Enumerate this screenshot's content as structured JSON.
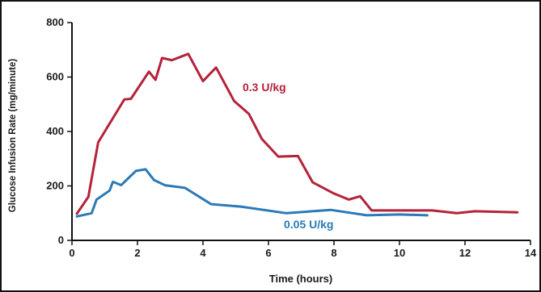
{
  "chart_data": {
    "type": "line",
    "title": "",
    "xlabel": "Time (hours)",
    "ylabel": "Glucose Infusion Rate (mg/minute)",
    "xlim": [
      0,
      14
    ],
    "ylim": [
      0,
      800
    ],
    "xticks": [
      0,
      2,
      4,
      6,
      8,
      10,
      12,
      14
    ],
    "yticks": [
      0,
      200,
      400,
      600,
      800
    ],
    "grid": false,
    "legend": "none",
    "series": [
      {
        "name": "0.3 U/kg",
        "color": "#b5223a",
        "points": [
          [
            0.15,
            98
          ],
          [
            0.5,
            160
          ],
          [
            0.8,
            360
          ],
          [
            1.6,
            518
          ],
          [
            1.8,
            520
          ],
          [
            2.35,
            620
          ],
          [
            2.55,
            590
          ],
          [
            2.75,
            670
          ],
          [
            3.05,
            662
          ],
          [
            3.55,
            685
          ],
          [
            4.0,
            585
          ],
          [
            4.4,
            635
          ],
          [
            4.95,
            512
          ],
          [
            5.4,
            465
          ],
          [
            5.8,
            372
          ],
          [
            6.3,
            308
          ],
          [
            6.9,
            310
          ],
          [
            7.35,
            213
          ],
          [
            8.0,
            172
          ],
          [
            8.45,
            150
          ],
          [
            8.8,
            162
          ],
          [
            9.15,
            110
          ],
          [
            10.0,
            110
          ],
          [
            11.0,
            110
          ],
          [
            11.75,
            100
          ],
          [
            12.3,
            107
          ],
          [
            13.6,
            103
          ]
        ]
      },
      {
        "name": "0.05 U/kg",
        "color": "#2a7ab8",
        "points": [
          [
            0.15,
            88
          ],
          [
            0.6,
            100
          ],
          [
            0.75,
            150
          ],
          [
            1.15,
            183
          ],
          [
            1.25,
            215
          ],
          [
            1.5,
            203
          ],
          [
            1.95,
            255
          ],
          [
            2.25,
            261
          ],
          [
            2.5,
            222
          ],
          [
            2.85,
            202
          ],
          [
            3.45,
            193
          ],
          [
            4.25,
            133
          ],
          [
            5.15,
            124
          ],
          [
            6.55,
            100
          ],
          [
            7.9,
            112
          ],
          [
            9.0,
            92
          ],
          [
            10.0,
            95
          ],
          [
            10.85,
            92
          ]
        ]
      }
    ],
    "annotations": [
      {
        "text": "0.3 U/kg",
        "series": 0
      },
      {
        "text": "0.05 U/kg",
        "series": 1
      }
    ]
  }
}
